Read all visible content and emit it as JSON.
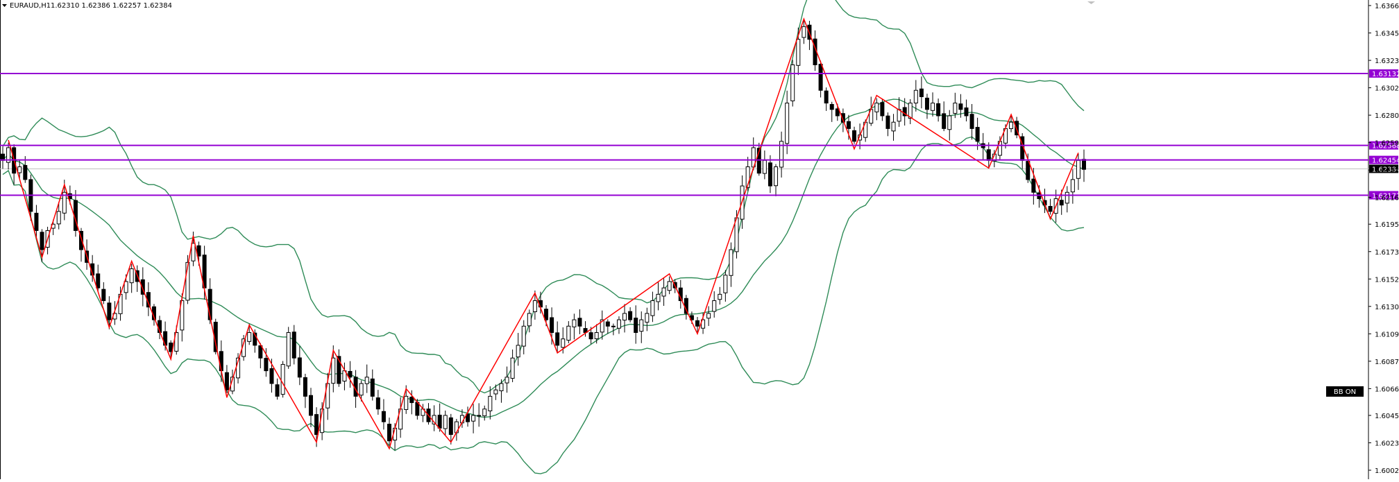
{
  "header": {
    "symbol": "EURAUD,H1",
    "ohlc": "1.62310 1.62386 1.62257 1.62384"
  },
  "colors": {
    "bollinger": "#2e8b57",
    "zigzag": "#ff0000",
    "level_line": "#9400d3",
    "candle": "#000000",
    "bid_line": "#c0c0c0"
  },
  "badge": {
    "label": "BB ON"
  },
  "chart_data": {
    "type": "candlestick",
    "title": "EURAUD,H1",
    "ylim": [
      1.6002,
      1.63665
    ],
    "y_ticks": [
      "1.63665",
      "1.63450",
      "1.63235",
      "1.63020",
      "1.62805",
      "1.62590",
      "1.62375",
      "1.62160",
      "1.61950",
      "1.61735",
      "1.61520",
      "1.61305",
      "1.61090",
      "1.60875",
      "1.60660",
      "1.60450",
      "1.60235",
      "1.60020"
    ],
    "levels": [
      {
        "label": "1.63132",
        "value": 1.63132
      },
      {
        "label": "1.62568",
        "value": 1.62568
      },
      {
        "label": "1.62454",
        "value": 1.62454
      },
      {
        "label": "1.62177",
        "value": 1.62177
      }
    ],
    "current_price": {
      "label": "1.62384",
      "value": 1.62384
    },
    "close_series": [
      1.6245,
      1.6255,
      1.6235,
      1.624,
      1.623,
      1.6205,
      1.619,
      1.6175,
      1.619,
      1.6195,
      1.6205,
      1.622,
      1.6215,
      1.619,
      1.6175,
      1.6165,
      1.6155,
      1.6145,
      1.6135,
      1.612,
      1.6125,
      1.614,
      1.615,
      1.616,
      1.615,
      1.614,
      1.613,
      1.612,
      1.611,
      1.61,
      1.6095,
      1.611,
      1.6135,
      1.6165,
      1.618,
      1.617,
      1.6145,
      1.612,
      1.6095,
      1.608,
      1.6065,
      1.6075,
      1.609,
      1.6105,
      1.611,
      1.61,
      1.609,
      1.608,
      1.607,
      1.606,
      1.6085,
      1.611,
      1.609,
      1.6075,
      1.606,
      1.6045,
      1.603,
      1.605,
      1.607,
      1.609,
      1.607,
      1.608,
      1.6075,
      1.606,
      1.607,
      1.6075,
      1.606,
      1.605,
      1.604,
      1.6025,
      1.6035,
      1.605,
      1.606,
      1.6055,
      1.6045,
      1.605,
      1.604,
      1.6045,
      1.6035,
      1.6045,
      1.603,
      1.604,
      1.6045,
      1.604,
      1.6045,
      1.6045,
      1.605,
      1.606,
      1.6065,
      1.607,
      1.6075,
      1.609,
      1.61,
      1.6115,
      1.6125,
      1.6135,
      1.613,
      1.612,
      1.611,
      1.61,
      1.6105,
      1.6115,
      1.612,
      1.6115,
      1.611,
      1.6105,
      1.611,
      1.612,
      1.6115,
      1.6115,
      1.612,
      1.6125,
      1.612,
      1.611,
      1.612,
      1.6125,
      1.6135,
      1.614,
      1.6145,
      1.615,
      1.6145,
      1.6135,
      1.6125,
      1.612,
      1.6115,
      1.612,
      1.6125,
      1.6135,
      1.614,
      1.6155,
      1.6175,
      1.62,
      1.6225,
      1.624,
      1.6255,
      1.6235,
      1.6245,
      1.6225,
      1.624,
      1.626,
      1.629,
      1.632,
      1.634,
      1.635,
      1.634,
      1.632,
      1.63,
      1.629,
      1.6285,
      1.628,
      1.6275,
      1.627,
      1.626,
      1.6265,
      1.6275,
      1.6285,
      1.629,
      1.628,
      1.627,
      1.6275,
      1.6285,
      1.628,
      1.629,
      1.63,
      1.6295,
      1.6285,
      1.629,
      1.628,
      1.627,
      1.628,
      1.629,
      1.6285,
      1.628,
      1.627,
      1.626,
      1.6255,
      1.6245,
      1.625,
      1.626,
      1.627,
      1.6275,
      1.6265,
      1.6245,
      1.623,
      1.622,
      1.6215,
      1.621,
      1.6205,
      1.6215,
      1.621,
      1.622,
      1.623,
      1.6245,
      1.6238
    ]
  }
}
